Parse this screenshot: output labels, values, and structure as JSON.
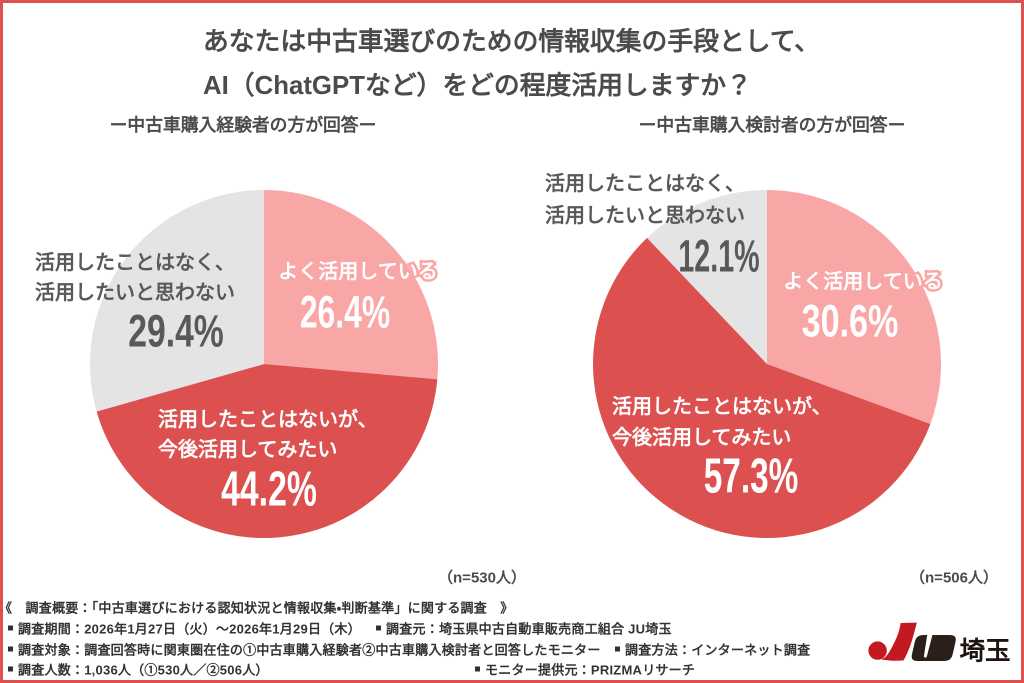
{
  "page": {
    "background": "#ffffff",
    "border_color": "#DC5050"
  },
  "title": {
    "line1": "あなたは中古車選びのための情報収集の手段として、",
    "line2": "AI（ChatGPTなど）をどの程度活用しますか？"
  },
  "chart_data": [
    {
      "type": "pie",
      "title": "ー中古車購入経験者の方が回答ー",
      "n_label": "（n=530人）",
      "start_angle_deg": 0,
      "direction": "clockwise",
      "radius_px": 174,
      "slices": [
        {
          "label": "よく活用している",
          "value_pct": 26.4,
          "value_label": "26.4%",
          "color": "#F9A6A6"
        },
        {
          "label": "活用したことはないが、今後活用してみたい",
          "label_lines": [
            "活用したことはないが、",
            "今後活用してみたい"
          ],
          "value_pct": 44.2,
          "value_label": "44.2%",
          "color": "#DC5050"
        },
        {
          "label": "活用したことはなく、活用したいと思わない",
          "label_lines": [
            "活用したことはなく、",
            "活用したいと思わない"
          ],
          "value_pct": 29.4,
          "value_label": "29.4%",
          "color": "#E4E4E4"
        }
      ]
    },
    {
      "type": "pie",
      "title": "ー中古車購入検討者の方が回答ー",
      "n_label": "（n=506人）",
      "start_angle_deg": 0,
      "direction": "clockwise",
      "radius_px": 174,
      "slices": [
        {
          "label": "よく活用している",
          "value_pct": 30.6,
          "value_label": "30.6%",
          "color": "#F9A6A6"
        },
        {
          "label": "活用したことはないが、今後活用してみたい",
          "label_lines": [
            "活用したことはないが、",
            "今後活用してみたい"
          ],
          "value_pct": 57.3,
          "value_label": "57.3%",
          "color": "#DC5050"
        },
        {
          "label": "活用したことはなく、活用したいと思わない",
          "label_lines": [
            "活用したことはなく、",
            "活用したいと思わない"
          ],
          "value_pct": 12.1,
          "value_label": "12.1%",
          "color": "#E4E4E4"
        }
      ]
    }
  ],
  "footer": {
    "line1": "《　調査概要：「中古車選びにおける認知状況と情報収集・判断基準」に関する調査　》",
    "line2a": "調査期間：2026年1月27日（火）～2026年1月29日（木）",
    "line2b": "調査元：埼玉県中古自動車販売商工組合 JU埼玉",
    "line3a": "調査対象：調査回答時に関東圏在住の①中古車購入経験者②中古車購入検討者と回答したモニター",
    "line3b": "調査方法：インターネット調査",
    "line4a": "調査人数：1,036人（①530人／②506人）",
    "line4b": "モニター提供元：PRIZMAリサーチ"
  },
  "logo": {
    "text": "埼玉",
    "ju_red": "#C31A22",
    "ju_dark": "#2A1F19"
  }
}
